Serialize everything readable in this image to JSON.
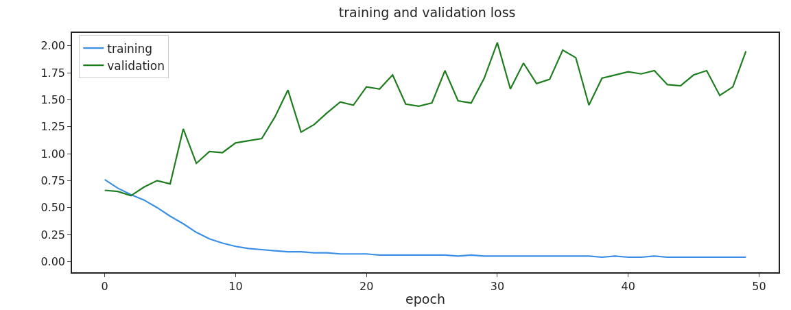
{
  "chart_data": {
    "type": "line",
    "title": "training and validation loss",
    "xlabel": "epoch",
    "x": [
      0,
      1,
      2,
      3,
      4,
      5,
      6,
      7,
      8,
      9,
      10,
      11,
      12,
      13,
      14,
      15,
      16,
      17,
      18,
      19,
      20,
      21,
      22,
      23,
      24,
      25,
      26,
      27,
      28,
      29,
      30,
      31,
      32,
      33,
      34,
      35,
      36,
      37,
      38,
      39,
      40,
      41,
      42,
      43,
      44,
      45,
      46,
      47,
      48,
      49
    ],
    "series": [
      {
        "name": "training",
        "color": "#3a8ee6",
        "values": [
          0.76,
          0.68,
          0.62,
          0.57,
          0.5,
          0.42,
          0.35,
          0.27,
          0.21,
          0.17,
          0.14,
          0.12,
          0.11,
          0.1,
          0.09,
          0.09,
          0.08,
          0.08,
          0.07,
          0.07,
          0.07,
          0.06,
          0.06,
          0.06,
          0.06,
          0.06,
          0.06,
          0.05,
          0.06,
          0.05,
          0.05,
          0.05,
          0.05,
          0.05,
          0.05,
          0.05,
          0.05,
          0.05,
          0.04,
          0.05,
          0.04,
          0.04,
          0.05,
          0.04,
          0.04,
          0.04,
          0.04,
          0.04,
          0.04,
          0.04
        ]
      },
      {
        "name": "validation",
        "color": "#1e7d1e",
        "values": [
          0.66,
          0.65,
          0.61,
          0.69,
          0.75,
          0.72,
          1.23,
          0.91,
          1.02,
          1.01,
          1.1,
          1.12,
          1.14,
          1.34,
          1.59,
          1.2,
          1.27,
          1.38,
          1.48,
          1.45,
          1.62,
          1.6,
          1.73,
          1.46,
          1.44,
          1.47,
          1.77,
          1.49,
          1.47,
          1.7,
          2.03,
          1.6,
          1.84,
          1.65,
          1.69,
          1.96,
          1.89,
          1.45,
          1.7,
          1.73,
          1.76,
          1.74,
          1.77,
          1.64,
          1.63,
          1.73,
          1.77,
          1.54,
          1.62,
          1.95
        ]
      }
    ],
    "xlim": [
      -2.5,
      51.5
    ],
    "xticks": [
      0,
      10,
      20,
      30,
      40,
      50
    ],
    "ylim": [
      -0.1,
      2.12
    ],
    "yticks": [
      {
        "value": 0,
        "label": "0.00"
      },
      {
        "value": 0.25,
        "label": "0.25"
      },
      {
        "value": 0.5,
        "label": "0.50"
      },
      {
        "value": 0.75,
        "label": "0.75"
      },
      {
        "value": 1,
        "label": "1.00"
      },
      {
        "value": 1.25,
        "label": "1.25"
      },
      {
        "value": 1.5,
        "label": "1.50"
      },
      {
        "value": 1.75,
        "label": "1.75"
      },
      {
        "value": 2,
        "label": "2.00"
      }
    ],
    "grid": false,
    "legend": "top left",
    "marker": "none",
    "line_style": "solid"
  }
}
